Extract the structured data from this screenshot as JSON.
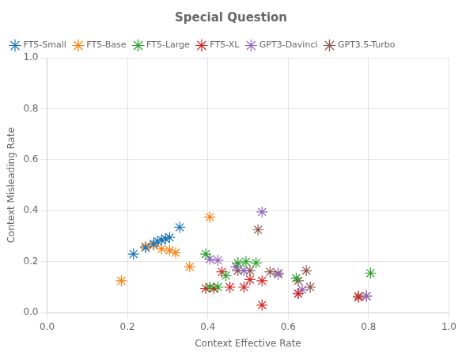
{
  "chart_data": {
    "type": "scatter",
    "title": "Special Question",
    "xlabel": "Context Effective Rate",
    "ylabel": "Context Misleading Rate",
    "xlim": [
      0.0,
      1.0
    ],
    "ylim": [
      0.0,
      1.0
    ],
    "xticks": [
      {
        "value": 0.0,
        "label": "0.0"
      },
      0.2,
      0.4,
      0.6,
      0.8,
      {
        "value": 1.0,
        "label": "1.0"
      }
    ],
    "yticks": [
      {
        "value": 0.0,
        "label": "0.0"
      },
      0.2,
      0.4,
      0.6,
      0.8,
      {
        "value": 1.0,
        "label": "1.0"
      }
    ],
    "grid": true,
    "legend": "upper left",
    "marker": "star",
    "series": [
      {
        "name": "FT5-Small",
        "color": "#1f77b4",
        "x": [
          0.215,
          0.245,
          0.265,
          0.275,
          0.285,
          0.295,
          0.305,
          0.33
        ],
        "values": [
          0.23,
          0.255,
          0.27,
          0.28,
          0.285,
          0.29,
          0.295,
          0.335
        ]
      },
      {
        "name": "FT5-Base",
        "color": "#ff7f0e",
        "x": [
          0.185,
          0.245,
          0.265,
          0.285,
          0.305,
          0.32,
          0.355,
          0.405
        ],
        "values": [
          0.125,
          0.26,
          0.265,
          0.25,
          0.245,
          0.235,
          0.18,
          0.375
        ]
      },
      {
        "name": "FT5-Large",
        "color": "#2ca02c",
        "x": [
          0.395,
          0.405,
          0.425,
          0.445,
          0.475,
          0.495,
          0.52,
          0.62,
          0.805
        ],
        "values": [
          0.23,
          0.1,
          0.1,
          0.145,
          0.195,
          0.2,
          0.195,
          0.135,
          0.155
        ]
      },
      {
        "name": "FT5-XL",
        "color": "#d62728",
        "x": [
          0.395,
          0.415,
          0.435,
          0.455,
          0.49,
          0.505,
          0.535,
          0.535,
          0.625,
          0.775
        ],
        "values": [
          0.095,
          0.095,
          0.16,
          0.1,
          0.1,
          0.13,
          0.125,
          0.03,
          0.075,
          0.06
        ]
      },
      {
        "name": "GPT3-Davinci",
        "color": "#9467bd",
        "x": [
          0.405,
          0.425,
          0.47,
          0.49,
          0.535,
          0.575,
          0.625,
          0.635,
          0.795
        ],
        "values": [
          0.21,
          0.205,
          0.18,
          0.165,
          0.395,
          0.15,
          0.075,
          0.09,
          0.065
        ]
      },
      {
        "name": "GPT3.5-Turbo",
        "color": "#8c564b",
        "x": [
          0.475,
          0.505,
          0.525,
          0.555,
          0.575,
          0.625,
          0.645,
          0.655,
          0.775,
          0.795
        ],
        "values": [
          0.165,
          0.165,
          0.325,
          0.16,
          0.155,
          0.125,
          0.165,
          0.1,
          0.065,
          0.065
        ]
      }
    ]
  }
}
